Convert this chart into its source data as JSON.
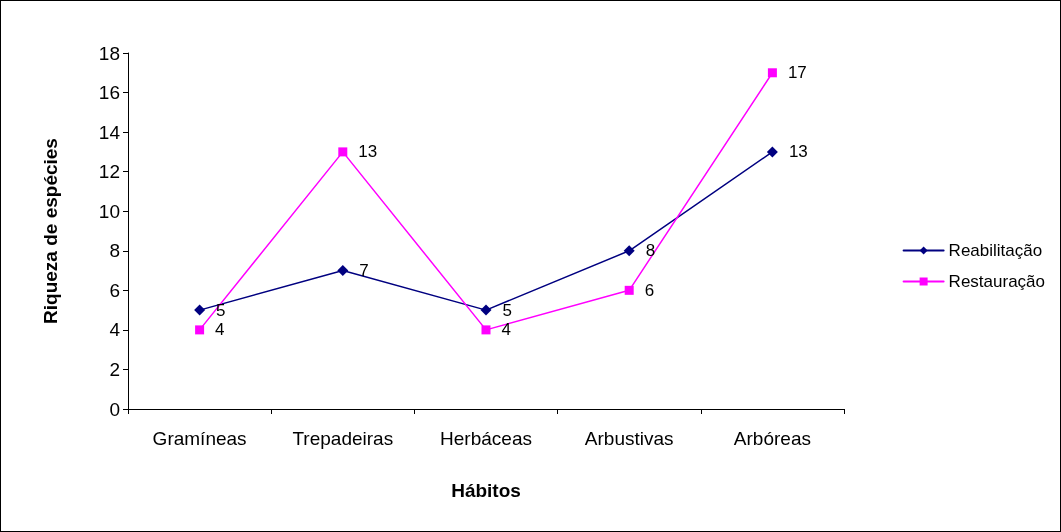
{
  "chart_data": {
    "type": "line",
    "xlabel": "Hábitos",
    "ylabel": "Riqueza de espécies",
    "categories": [
      "Gramíneas",
      "Trepadeiras",
      "Herbáceas",
      "Arbustivas",
      "Arbóreas"
    ],
    "series": [
      {
        "name": "Reabilitação",
        "color": "#000080",
        "marker": "diamond",
        "values": [
          5,
          7,
          5,
          8,
          13
        ]
      },
      {
        "name": "Restauração",
        "color": "#ff00ff",
        "marker": "square",
        "values": [
          4,
          13,
          4,
          6,
          17
        ]
      }
    ],
    "ylim": [
      0,
      18
    ],
    "yticks": [
      0,
      2,
      4,
      6,
      8,
      10,
      12,
      14,
      16,
      18
    ],
    "grid": false,
    "legend": "right",
    "data_labels": true,
    "line_style": "solid"
  }
}
